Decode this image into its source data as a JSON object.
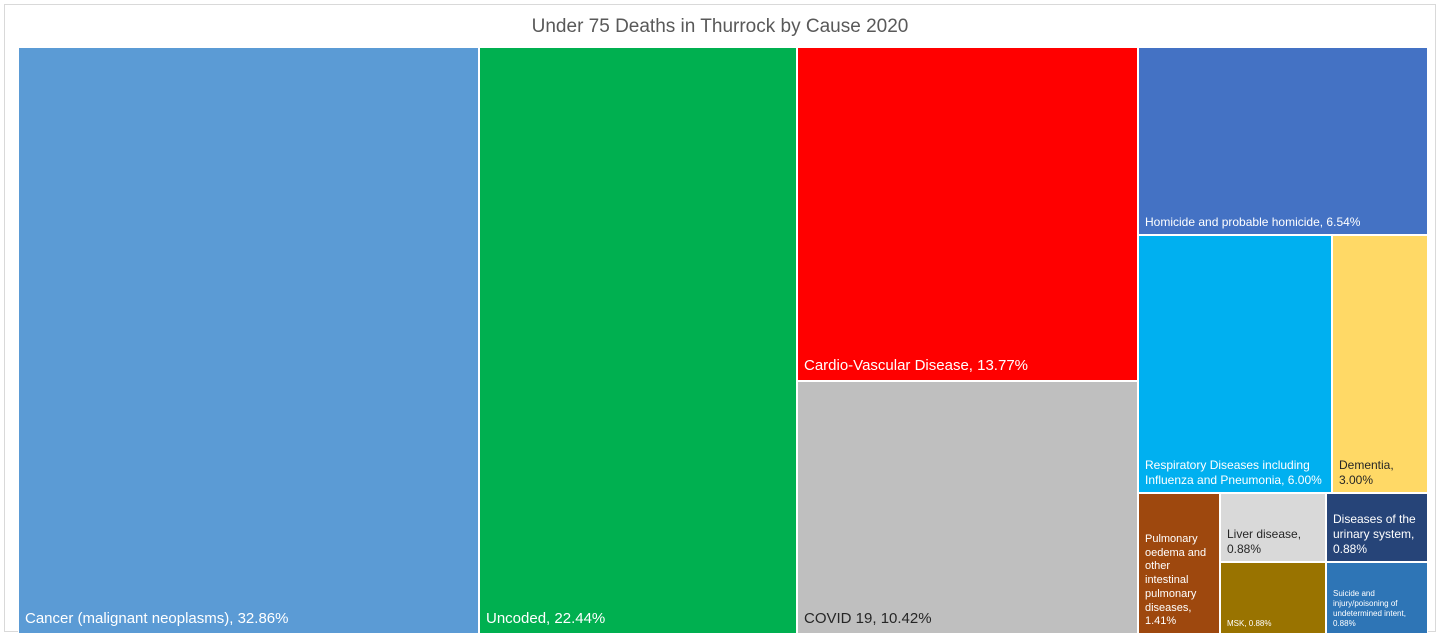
{
  "chart_data": {
    "type": "treemap",
    "title": "Under 75 Deaths in Thurrock by Cause 2020",
    "items": [
      {
        "label": "Cancer (malignant neoplasms), 32.86%",
        "name": "Cancer (malignant neoplasms)",
        "value": 32.86,
        "color": "#5B9BD5",
        "text_color": "#ffffff"
      },
      {
        "label": "Uncoded, 22.44%",
        "name": "Uncoded",
        "value": 22.44,
        "color": "#00B050",
        "text_color": "#ffffff"
      },
      {
        "label": "Cardio-Vascular Disease, 13.77%",
        "name": "Cardio-Vascular Disease",
        "value": 13.77,
        "color": "#FF0000",
        "text_color": "#ffffff"
      },
      {
        "label": "COVID 19, 10.42%",
        "name": "COVID 19",
        "value": 10.42,
        "color": "#BFBFBF",
        "text_color": "#262626"
      },
      {
        "label": "Homicide and probable homicide, 6.54%",
        "name": "Homicide and probable homicide",
        "value": 6.54,
        "color": "#4472C4",
        "text_color": "#ffffff"
      },
      {
        "label": "Respiratory Diseases including Influenza and Pneumonia, 6.00%",
        "name": "Respiratory Diseases including Influenza and Pneumonia",
        "value": 6.0,
        "color": "#00B0F0",
        "text_color": "#ffffff"
      },
      {
        "label": "Dementia, 3.00%",
        "name": "Dementia",
        "value": 3.0,
        "color": "#FFD966",
        "text_color": "#262626"
      },
      {
        "label": "Pulmonary oedema and other intestinal pulmonary diseases, 1.41%",
        "name": "Pulmonary oedema and other intestinal pulmonary diseases",
        "value": 1.41,
        "color": "#9E480E",
        "text_color": "#ffffff"
      },
      {
        "label": "Liver disease, 0.88%",
        "name": "Liver disease",
        "value": 0.88,
        "color": "#D9D9D9",
        "text_color": "#262626"
      },
      {
        "label": "Diseases of the urinary system, 0.88%",
        "name": "Diseases of the urinary system",
        "value": 0.88,
        "color": "#264478",
        "text_color": "#ffffff"
      },
      {
        "label": "MSK, 0.88%",
        "name": "MSK",
        "value": 0.88,
        "color": "#997300",
        "text_color": "#ffffff"
      },
      {
        "label": "Suicide and injury/poisoning of undetermined intent, 0.88%",
        "name": "Suicide and injury/poisoning of undetermined intent",
        "value": 0.88,
        "color": "#2E75B6",
        "text_color": "#ffffff"
      }
    ]
  }
}
